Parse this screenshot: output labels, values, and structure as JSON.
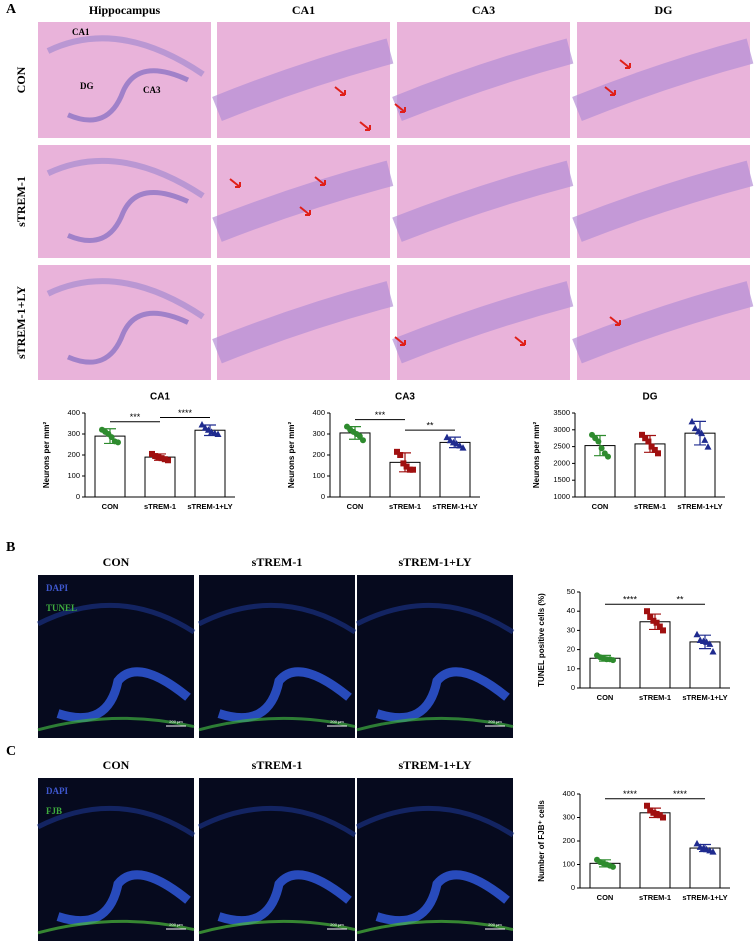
{
  "panel_labels": [
    "A",
    "B",
    "C"
  ],
  "panel_a": {
    "column_headers": [
      "Hippocampus",
      "CA1",
      "CA3",
      "DG"
    ],
    "row_labels": [
      "CON",
      "sTREM-1",
      "sTREM-1+LY"
    ],
    "region_labels": [
      "CA1",
      "DG",
      "CA3"
    ]
  },
  "panel_b": {
    "column_headers": [
      "CON",
      "sTREM-1",
      "sTREM-1+LY"
    ],
    "stain_labels": [
      "DAPI",
      "TUNEL"
    ],
    "scale_bar": "200 μm"
  },
  "panel_c": {
    "column_headers": [
      "CON",
      "sTREM-1",
      "sTREM-1+LY"
    ],
    "stain_labels": [
      "DAPI",
      "FJB"
    ],
    "scale_bar": "200 μm"
  },
  "chart_data": [
    {
      "type": "bar",
      "title": "CA1",
      "ylabel": "Neurons per mm²",
      "categories": [
        "CON",
        "sTREM-1",
        "sTREM-1+LY"
      ],
      "values": [
        290,
        190,
        318
      ],
      "errors": [
        35,
        15,
        25
      ],
      "points": [
        [
          320,
          310,
          300,
          285,
          265,
          260
        ],
        [
          205,
          195,
          190,
          185,
          180,
          175
        ],
        [
          345,
          330,
          320,
          310,
          305,
          300
        ]
      ],
      "colors": [
        "#2e8b2e",
        "#a01010",
        "#1f2b8f"
      ],
      "markers": [
        "circle",
        "square",
        "triangle"
      ],
      "ylim": [
        0,
        400
      ],
      "yticks": [
        0,
        100,
        200,
        300,
        400
      ],
      "annotations": [
        "***",
        "****"
      ]
    },
    {
      "type": "bar",
      "title": "CA3",
      "ylabel": "Neurons per mm²",
      "categories": [
        "CON",
        "sTREM-1",
        "sTREM-1+LY"
      ],
      "values": [
        305,
        165,
        260
      ],
      "errors": [
        30,
        45,
        25
      ],
      "points": [
        [
          335,
          320,
          310,
          300,
          290,
          270
        ],
        [
          215,
          200,
          160,
          145,
          130,
          130
        ],
        [
          285,
          270,
          260,
          255,
          245,
          235
        ]
      ],
      "colors": [
        "#2e8b2e",
        "#a01010",
        "#1f2b8f"
      ],
      "markers": [
        "circle",
        "square",
        "triangle"
      ],
      "ylim": [
        0,
        400
      ],
      "yticks": [
        0,
        100,
        200,
        300,
        400
      ],
      "annotations": [
        "***",
        "**"
      ]
    },
    {
      "type": "bar",
      "title": "DG",
      "ylabel": "Neurons per mm²",
      "categories": [
        "CON",
        "sTREM-1",
        "sTREM-1+LY"
      ],
      "values": [
        2530,
        2580,
        2900
      ],
      "errors": [
        300,
        250,
        350
      ],
      "points": [
        [
          2850,
          2750,
          2650,
          2450,
          2300,
          2200
        ],
        [
          2850,
          2750,
          2650,
          2500,
          2400,
          2300
        ],
        [
          3250,
          3050,
          2950,
          2900,
          2700,
          2500
        ]
      ],
      "colors": [
        "#2e8b2e",
        "#a01010",
        "#1f2b8f"
      ],
      "markers": [
        "circle",
        "square",
        "triangle"
      ],
      "ylim": [
        1000,
        3500
      ],
      "yticks": [
        1000,
        1500,
        2000,
        2500,
        3000,
        3500
      ],
      "annotations": []
    },
    {
      "type": "bar",
      "ylabel": "TUNEL positive cells (%)",
      "categories": [
        "CON",
        "sTREM-1",
        "sTREM-1+LY"
      ],
      "values": [
        15.5,
        34.5,
        24
      ],
      "errors": [
        1.5,
        4,
        3.5
      ],
      "points": [
        [
          17,
          16,
          15.5,
          15,
          15,
          14.5
        ],
        [
          40,
          37,
          35,
          34,
          32,
          30
        ],
        [
          28,
          25,
          24.5,
          24,
          23,
          19
        ]
      ],
      "colors": [
        "#2e8b2e",
        "#a01010",
        "#1f2b8f"
      ],
      "markers": [
        "circle",
        "square",
        "triangle"
      ],
      "ylim": [
        0,
        50
      ],
      "yticks": [
        0,
        10,
        20,
        30,
        40,
        50
      ],
      "annotations": [
        "****",
        "**"
      ]
    },
    {
      "type": "bar",
      "ylabel": "Number of FJB⁺ cells",
      "categories": [
        "CON",
        "sTREM-1",
        "sTREM-1+LY"
      ],
      "values": [
        105,
        320,
        170
      ],
      "errors": [
        15,
        20,
        15
      ],
      "points": [
        [
          120,
          110,
          105,
          100,
          95,
          90
        ],
        [
          350,
          330,
          320,
          315,
          310,
          300
        ],
        [
          190,
          175,
          170,
          165,
          160,
          155
        ]
      ],
      "colors": [
        "#2e8b2e",
        "#a01010",
        "#1f2b8f"
      ],
      "markers": [
        "circle",
        "square",
        "triangle"
      ],
      "ylim": [
        0,
        400
      ],
      "yticks": [
        0,
        100,
        200,
        300,
        400
      ],
      "annotations": [
        "****",
        "****"
      ]
    }
  ]
}
